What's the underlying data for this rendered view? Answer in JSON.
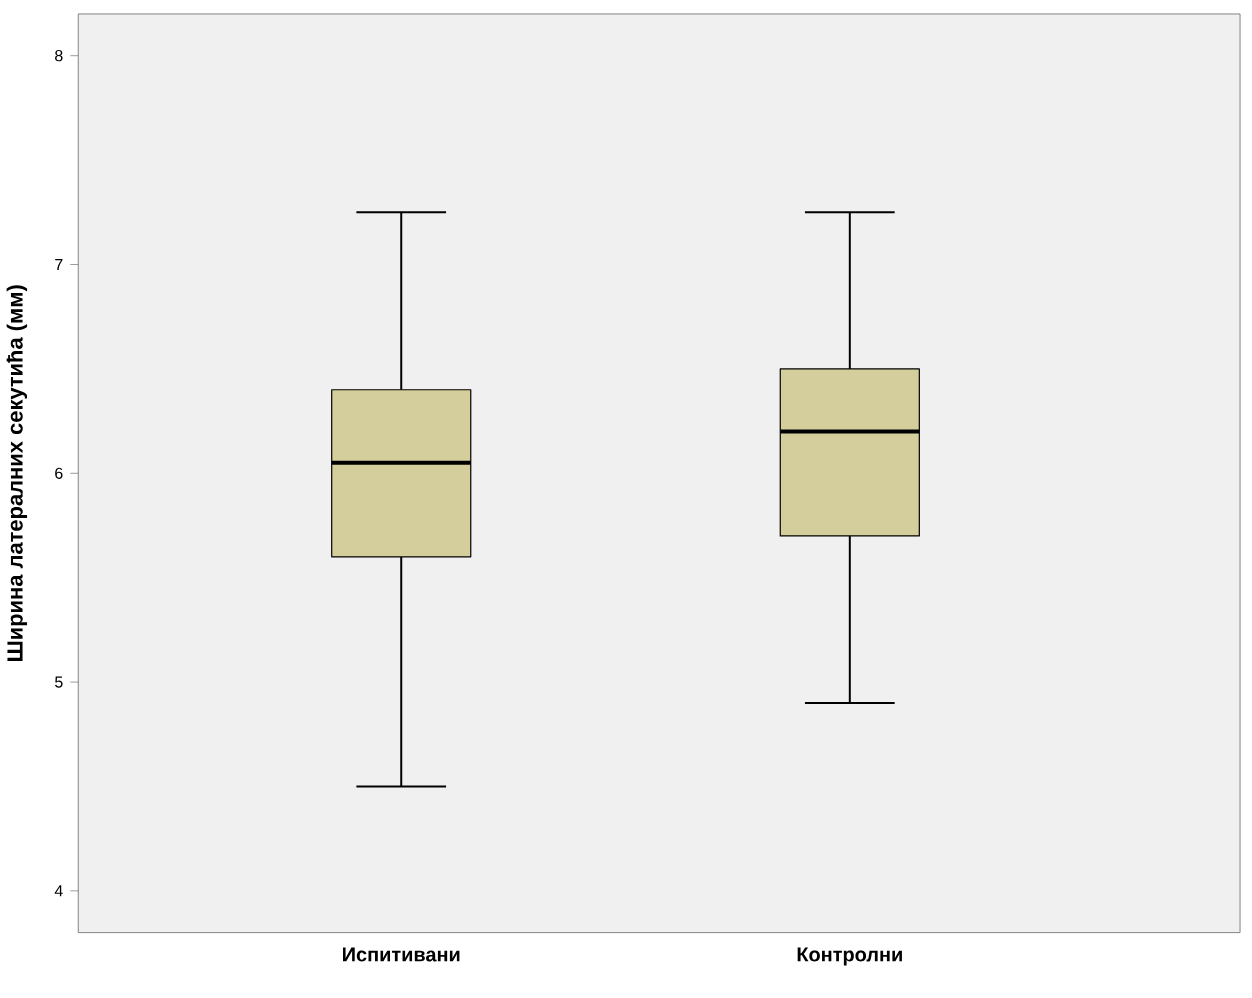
{
  "chart_data": {
    "type": "box",
    "ylabel": "Ширина латералних секутића (мм)",
    "categories": [
      "Испитивани",
      "Контролни"
    ],
    "color": "#d3ce9b",
    "boxes": [
      {
        "low": 4.5,
        "q1": 5.6,
        "median": 6.05,
        "q3": 6.4,
        "high": 7.25
      },
      {
        "low": 4.9,
        "q1": 5.7,
        "median": 6.2,
        "q3": 6.5,
        "high": 7.25
      }
    ],
    "ylim": [
      3.8,
      8.2
    ],
    "yticks": [
      4,
      5,
      6,
      7,
      8
    ],
    "grid": false
  }
}
